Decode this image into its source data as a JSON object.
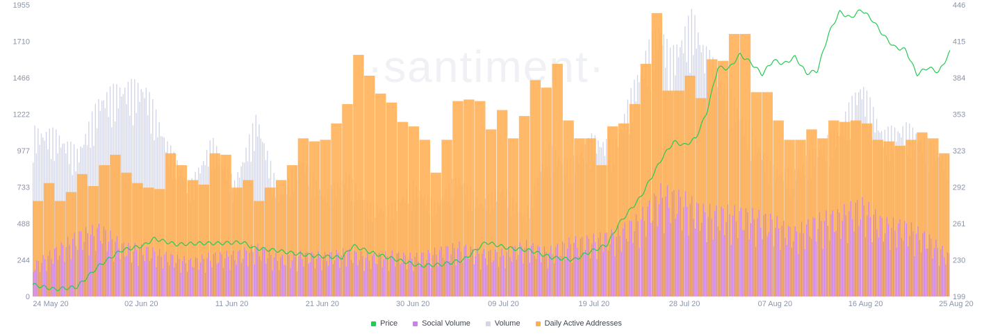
{
  "watermark": "·santiment·",
  "colors": {
    "price": "#26c953",
    "social": "#c783e8",
    "volume": "#d3d6e8",
    "daa": "#ffad4d",
    "tick": "#8a93a8"
  },
  "chart_data": {
    "type": "bar",
    "x_labels": [
      "24 May 20",
      "02 Jun 20",
      "11 Jun 20",
      "21 Jun 20",
      "30 Jun 20",
      "09 Jul 20",
      "19 Jul 20",
      "28 Jul 20",
      "07 Aug 20",
      "16 Aug 20",
      "25 Aug 20"
    ],
    "y_left_ticks": [
      "1955",
      "1710",
      "1466",
      "1222",
      "977",
      "733",
      "488",
      "244",
      "0"
    ],
    "y_right_ticks": [
      "446",
      "415",
      "384",
      "353",
      "323",
      "292",
      "261",
      "230",
      "199"
    ],
    "y_left_range": [
      0,
      1955
    ],
    "y_right_range": [
      199,
      446
    ],
    "series": [
      {
        "name": "Price",
        "key": "price",
        "axis": "right",
        "mark": "line"
      },
      {
        "name": "Social Volume",
        "key": "social",
        "axis": "left",
        "mark": "bar"
      },
      {
        "name": "Volume",
        "key": "volume",
        "axis": "left",
        "mark": "bar"
      },
      {
        "name": "Daily Active Addresses",
        "key": "daa",
        "axis": "left",
        "mark": "bar"
      }
    ],
    "daily_active_addresses": [
      [
        1,
        640
      ],
      [
        2,
        760
      ],
      [
        3,
        640
      ],
      [
        4,
        700
      ],
      [
        5,
        820
      ],
      [
        6,
        740
      ],
      [
        7,
        880
      ],
      [
        8,
        950
      ],
      [
        9,
        830
      ],
      [
        10,
        760
      ],
      [
        11,
        730
      ],
      [
        12,
        720
      ],
      [
        13,
        960
      ],
      [
        14,
        880
      ],
      [
        15,
        780
      ],
      [
        16,
        750
      ],
      [
        17,
        960
      ],
      [
        18,
        950
      ],
      [
        19,
        730
      ],
      [
        20,
        780
      ],
      [
        21,
        640
      ],
      [
        22,
        730
      ],
      [
        23,
        780
      ],
      [
        24,
        880
      ],
      [
        25,
        1060
      ],
      [
        26,
        1040
      ],
      [
        27,
        1050
      ],
      [
        28,
        1160
      ],
      [
        29,
        1290
      ],
      [
        30,
        1620
      ],
      [
        31,
        1480
      ],
      [
        32,
        1360
      ],
      [
        33,
        1300
      ],
      [
        34,
        1170
      ],
      [
        35,
        1140
      ],
      [
        36,
        1050
      ],
      [
        37,
        830
      ],
      [
        38,
        1050
      ],
      [
        39,
        1310
      ],
      [
        40,
        1320
      ],
      [
        41,
        1310
      ],
      [
        42,
        1120
      ],
      [
        43,
        1250
      ],
      [
        44,
        1060
      ],
      [
        45,
        1210
      ],
      [
        46,
        1450
      ],
      [
        47,
        1400
      ],
      [
        48,
        1560
      ],
      [
        49,
        1180
      ],
      [
        50,
        1060
      ],
      [
        51,
        1060
      ],
      [
        52,
        880
      ],
      [
        53,
        1140
      ],
      [
        54,
        1160
      ],
      [
        55,
        1290
      ],
      [
        56,
        1560
      ],
      [
        57,
        1900
      ],
      [
        58,
        1380
      ],
      [
        59,
        1380
      ],
      [
        60,
        1480
      ],
      [
        61,
        1330
      ],
      [
        62,
        1590
      ],
      [
        63,
        1580
      ],
      [
        64,
        1760
      ],
      [
        65,
        1760
      ],
      [
        66,
        1370
      ],
      [
        67,
        1370
      ],
      [
        68,
        1180
      ],
      [
        69,
        1050
      ],
      [
        70,
        1050
      ],
      [
        71,
        1120
      ],
      [
        72,
        1060
      ],
      [
        73,
        1180
      ],
      [
        74,
        1170
      ],
      [
        75,
        1180
      ],
      [
        76,
        1160
      ],
      [
        77,
        1050
      ],
      [
        78,
        1040
      ],
      [
        79,
        1010
      ],
      [
        80,
        1050
      ],
      [
        81,
        1100
      ],
      [
        82,
        1060
      ],
      [
        83,
        960
      ]
    ],
    "volume": [
      [
        1,
        1150
      ],
      [
        3,
        1130
      ],
      [
        5,
        1000
      ],
      [
        7,
        1380
      ],
      [
        9,
        1460
      ],
      [
        11,
        1460
      ],
      [
        13,
        1060
      ],
      [
        15,
        760
      ],
      [
        17,
        1080
      ],
      [
        19,
        780
      ],
      [
        21,
        1250
      ],
      [
        23,
        700
      ],
      [
        25,
        960
      ],
      [
        27,
        700
      ],
      [
        29,
        850
      ],
      [
        31,
        630
      ],
      [
        33,
        620
      ],
      [
        35,
        780
      ],
      [
        37,
        640
      ],
      [
        39,
        840
      ],
      [
        41,
        650
      ],
      [
        43,
        760
      ],
      [
        45,
        560
      ],
      [
        47,
        1040
      ],
      [
        49,
        920
      ],
      [
        51,
        1100
      ],
      [
        53,
        1050
      ],
      [
        55,
        1530
      ],
      [
        57,
        1900
      ],
      [
        58,
        1660
      ],
      [
        60,
        1950
      ],
      [
        61,
        1720
      ],
      [
        63,
        1440
      ],
      [
        65,
        1170
      ],
      [
        67,
        890
      ],
      [
        69,
        860
      ],
      [
        71,
        1020
      ],
      [
        73,
        1150
      ],
      [
        75,
        1480
      ],
      [
        77,
        1130
      ],
      [
        79,
        1180
      ],
      [
        81,
        1060
      ],
      [
        83,
        940
      ]
    ],
    "social_volume": [
      [
        1,
        230
      ],
      [
        3,
        340
      ],
      [
        5,
        450
      ],
      [
        7,
        500
      ],
      [
        9,
        370
      ],
      [
        11,
        350
      ],
      [
        13,
        300
      ],
      [
        15,
        260
      ],
      [
        17,
        300
      ],
      [
        19,
        310
      ],
      [
        21,
        360
      ],
      [
        23,
        280
      ],
      [
        25,
        310
      ],
      [
        27,
        300
      ],
      [
        29,
        330
      ],
      [
        31,
        290
      ],
      [
        33,
        310
      ],
      [
        35,
        290
      ],
      [
        37,
        330
      ],
      [
        39,
        370
      ],
      [
        41,
        320
      ],
      [
        43,
        320
      ],
      [
        45,
        380
      ],
      [
        47,
        330
      ],
      [
        49,
        400
      ],
      [
        51,
        420
      ],
      [
        53,
        460
      ],
      [
        55,
        560
      ],
      [
        56,
        650
      ],
      [
        57,
        760
      ],
      [
        59,
        720
      ],
      [
        61,
        620
      ],
      [
        63,
        620
      ],
      [
        65,
        600
      ],
      [
        67,
        560
      ],
      [
        69,
        470
      ],
      [
        71,
        560
      ],
      [
        73,
        600
      ],
      [
        75,
        680
      ],
      [
        77,
        540
      ],
      [
        79,
        520
      ],
      [
        81,
        430
      ],
      [
        83,
        290
      ]
    ],
    "price": [
      [
        0,
        209
      ],
      [
        2,
        205
      ],
      [
        4,
        207
      ],
      [
        6,
        225
      ],
      [
        8,
        238
      ],
      [
        10,
        242
      ],
      [
        11,
        248
      ],
      [
        13,
        243
      ],
      [
        15,
        244
      ],
      [
        17,
        244
      ],
      [
        19,
        245
      ],
      [
        20,
        240
      ],
      [
        22,
        238
      ],
      [
        24,
        235
      ],
      [
        26,
        233
      ],
      [
        28,
        232
      ],
      [
        29,
        242
      ],
      [
        31,
        235
      ],
      [
        33,
        230
      ],
      [
        35,
        225
      ],
      [
        37,
        226
      ],
      [
        39,
        230
      ],
      [
        41,
        245
      ],
      [
        43,
        240
      ],
      [
        45,
        238
      ],
      [
        47,
        232
      ],
      [
        49,
        230
      ],
      [
        50,
        235
      ],
      [
        52,
        243
      ],
      [
        53,
        260
      ],
      [
        55,
        283
      ],
      [
        57,
        317
      ],
      [
        58,
        330
      ],
      [
        59,
        327
      ],
      [
        60,
        333
      ],
      [
        61,
        355
      ],
      [
        62,
        393
      ],
      [
        63,
        392
      ],
      [
        64,
        404
      ],
      [
        65,
        397
      ],
      [
        66,
        387
      ],
      [
        67,
        399
      ],
      [
        68,
        396
      ],
      [
        69,
        402
      ],
      [
        70,
        388
      ],
      [
        71,
        390
      ],
      [
        72,
        421
      ],
      [
        73,
        440
      ],
      [
        74,
        435
      ],
      [
        75,
        442
      ],
      [
        76,
        433
      ],
      [
        77,
        420
      ],
      [
        78,
        410
      ],
      [
        79,
        408
      ],
      [
        80,
        387
      ],
      [
        81,
        393
      ],
      [
        82,
        389
      ],
      [
        83,
        406
      ]
    ],
    "legend_placement": "bottom-center",
    "grid": false
  },
  "legend": {
    "price": "Price",
    "social": "Social Volume",
    "volume": "Volume",
    "daa": "Daily Active Addresses"
  }
}
